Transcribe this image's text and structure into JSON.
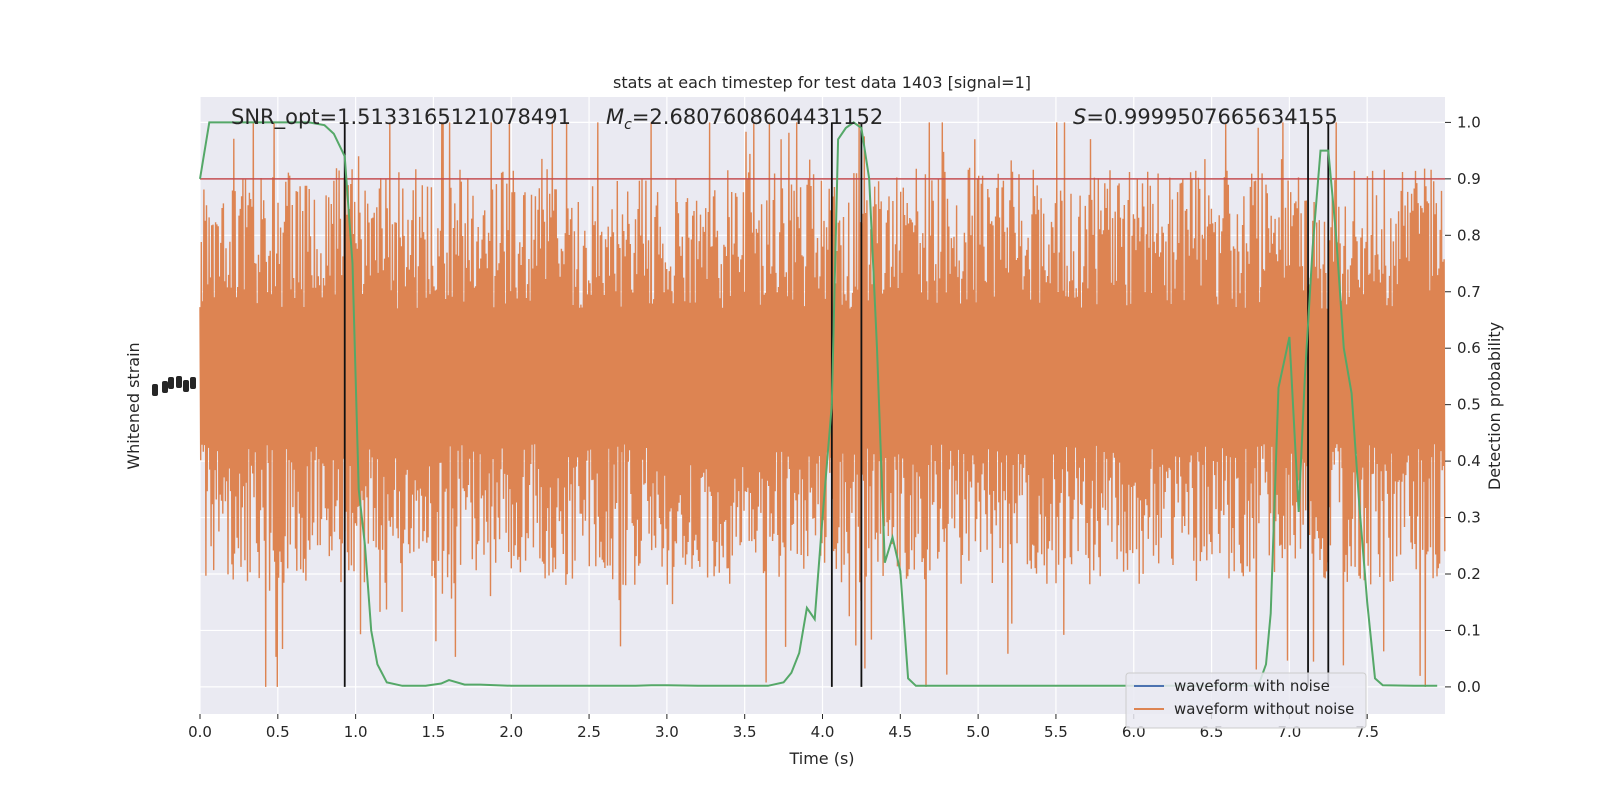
{
  "chart_data": {
    "type": "line",
    "title": "stats at each timestep for test data 1403 [signal=1]",
    "xlabel": "Time (s)",
    "ylabel_left": "Whitened strain",
    "ylabel_right": "Detection probability",
    "xlim": [
      0,
      8
    ],
    "ylim_right": [
      -0.048,
      1.045
    ],
    "x_ticks": [
      0.0,
      0.5,
      1.0,
      1.5,
      2.0,
      2.5,
      3.0,
      3.5,
      4.0,
      4.5,
      5.0,
      5.5,
      6.0,
      6.5,
      7.0,
      7.5
    ],
    "x_tick_labels": [
      "0.0",
      "0.5",
      "1.0",
      "1.5",
      "2.0",
      "2.5",
      "3.0",
      "3.5",
      "4.0",
      "4.5",
      "5.0",
      "5.5",
      "6.0",
      "6.5",
      "7.0",
      "7.5"
    ],
    "y_right_ticks": [
      0.0,
      0.1,
      0.2,
      0.3,
      0.4,
      0.5,
      0.6,
      0.7,
      0.8,
      0.9,
      1.0
    ],
    "y_right_tick_labels": [
      "0.0",
      "0.1",
      "0.2",
      "0.3",
      "0.4",
      "0.5",
      "0.6",
      "0.7",
      "0.8",
      "0.9",
      "1.0"
    ],
    "grid": true,
    "legend_position": "bottom-right",
    "annotations": {
      "snr": "SNR_opt=1.5133165121078491",
      "mc_prefix": "M",
      "mc_sub": "c",
      "mc_value": "=2.6807608604431152",
      "s_prefix": "S",
      "s_value": "=0.9999507665634155"
    },
    "threshold": 0.9,
    "vertical_lines_x": [
      0.93,
      4.06,
      4.25,
      7.12,
      7.25
    ],
    "series": [
      {
        "name": "waveform with noise",
        "color": "#4c72b0",
        "display": "line"
      },
      {
        "name": "waveform without noise",
        "color": "#dd8452",
        "display": "dense-noise",
        "approx_envelope_right_units": {
          "center": 0.55,
          "typical_half_range": 0.25,
          "peak_max": 1.0,
          "peak_min": 0.0
        }
      },
      {
        "name": "",
        "color": "#55a868",
        "display": "line",
        "x": [
          0.0,
          0.06,
          0.12,
          0.2,
          0.3,
          0.4,
          0.5,
          0.6,
          0.7,
          0.8,
          0.86,
          0.93,
          0.98,
          1.02,
          1.06,
          1.1,
          1.14,
          1.2,
          1.3,
          1.45,
          1.55,
          1.6,
          1.7,
          1.8,
          2.0,
          2.5,
          2.8,
          2.9,
          3.0,
          3.2,
          3.5,
          3.65,
          3.75,
          3.8,
          3.85,
          3.9,
          3.95,
          4.0,
          4.06,
          4.1,
          4.15,
          4.2,
          4.25,
          4.3,
          4.35,
          4.4,
          4.45,
          4.5,
          4.55,
          4.6,
          4.8,
          5.0,
          5.5,
          6.0,
          6.5,
          6.8,
          6.85,
          6.88,
          6.93,
          7.0,
          7.06,
          7.1,
          7.15,
          7.2,
          7.25,
          7.3,
          7.35,
          7.4,
          7.45,
          7.5,
          7.55,
          7.6,
          7.8,
          7.95
        ],
        "y": [
          0.9,
          1.0,
          1.0,
          1.0,
          1.0,
          1.0,
          1.0,
          1.0,
          1.0,
          0.995,
          0.98,
          0.94,
          0.75,
          0.35,
          0.25,
          0.1,
          0.04,
          0.008,
          0.002,
          0.002,
          0.006,
          0.012,
          0.004,
          0.004,
          0.002,
          0.002,
          0.002,
          0.003,
          0.003,
          0.002,
          0.002,
          0.002,
          0.008,
          0.025,
          0.06,
          0.14,
          0.12,
          0.3,
          0.5,
          0.97,
          0.99,
          1.0,
          0.99,
          0.9,
          0.6,
          0.22,
          0.265,
          0.205,
          0.015,
          0.002,
          0.002,
          0.002,
          0.002,
          0.002,
          0.002,
          0.002,
          0.04,
          0.13,
          0.53,
          0.62,
          0.31,
          0.55,
          0.78,
          0.95,
          0.95,
          0.8,
          0.6,
          0.52,
          0.32,
          0.15,
          0.015,
          0.003,
          0.002,
          0.002
        ]
      }
    ]
  }
}
